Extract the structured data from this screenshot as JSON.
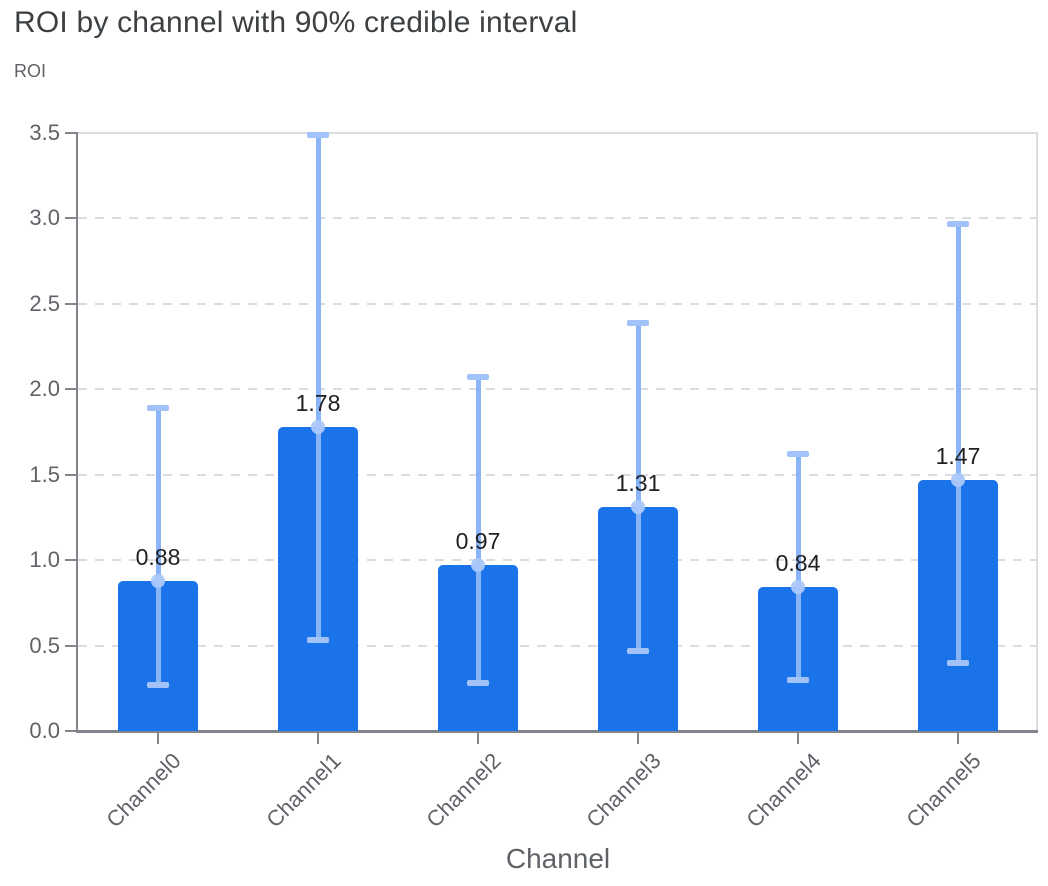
{
  "chart_data": {
    "type": "bar",
    "title": "ROI by channel with 90% credible interval",
    "ylabel": "ROI",
    "xlabel": "Channel",
    "categories": [
      "Channel0",
      "Channel1",
      "Channel2",
      "Channel3",
      "Channel4",
      "Channel5"
    ],
    "values": [
      0.88,
      1.78,
      0.97,
      1.31,
      0.84,
      1.47
    ],
    "value_labels": [
      "0.88",
      "1.78",
      "0.97",
      "1.31",
      "0.84",
      "1.47"
    ],
    "error_low": [
      0.27,
      0.53,
      0.28,
      0.47,
      0.3,
      0.4
    ],
    "error_high": [
      1.89,
      3.49,
      2.07,
      2.39,
      1.62,
      2.97
    ],
    "ylim": [
      0,
      3.5
    ],
    "ytick_labels": [
      "0.0",
      "0.5",
      "1.0",
      "1.5",
      "2.0",
      "2.5",
      "3.0",
      "3.5"
    ],
    "grid": "horizontal-dashed",
    "legend_position": "none",
    "colors": {
      "bar": "#1a73e8",
      "error_line": "#8ab4f8",
      "error_cap": "#a2c3f9",
      "mean_dot": "#abc8fa",
      "grid": "#dadce0",
      "axis": "#82868c",
      "tick_text": "#5f6368",
      "title_text": "#3c4043",
      "value_text": "#202124"
    }
  }
}
